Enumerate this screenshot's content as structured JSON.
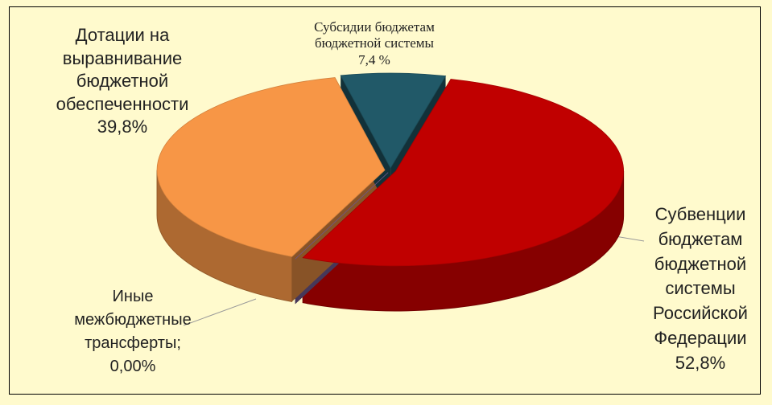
{
  "chart_data": {
    "type": "pie",
    "categories": [
      "Субвенции бюджетам бюджетной системы Российской Федерации",
      "Иные межбюджетные трансферты;",
      "Дотации на выравнивание бюджетной обеспеченности",
      "Субсидии бюджетам бюджетной системы"
    ],
    "values": [
      52.8,
      0.0,
      39.8,
      7.4
    ],
    "value_labels": [
      "52,8%",
      "0,00%",
      "39,8%",
      "7,4 %"
    ],
    "colors": [
      "#c00000",
      "#8064a2",
      "#f79646",
      "#215968"
    ]
  }
}
